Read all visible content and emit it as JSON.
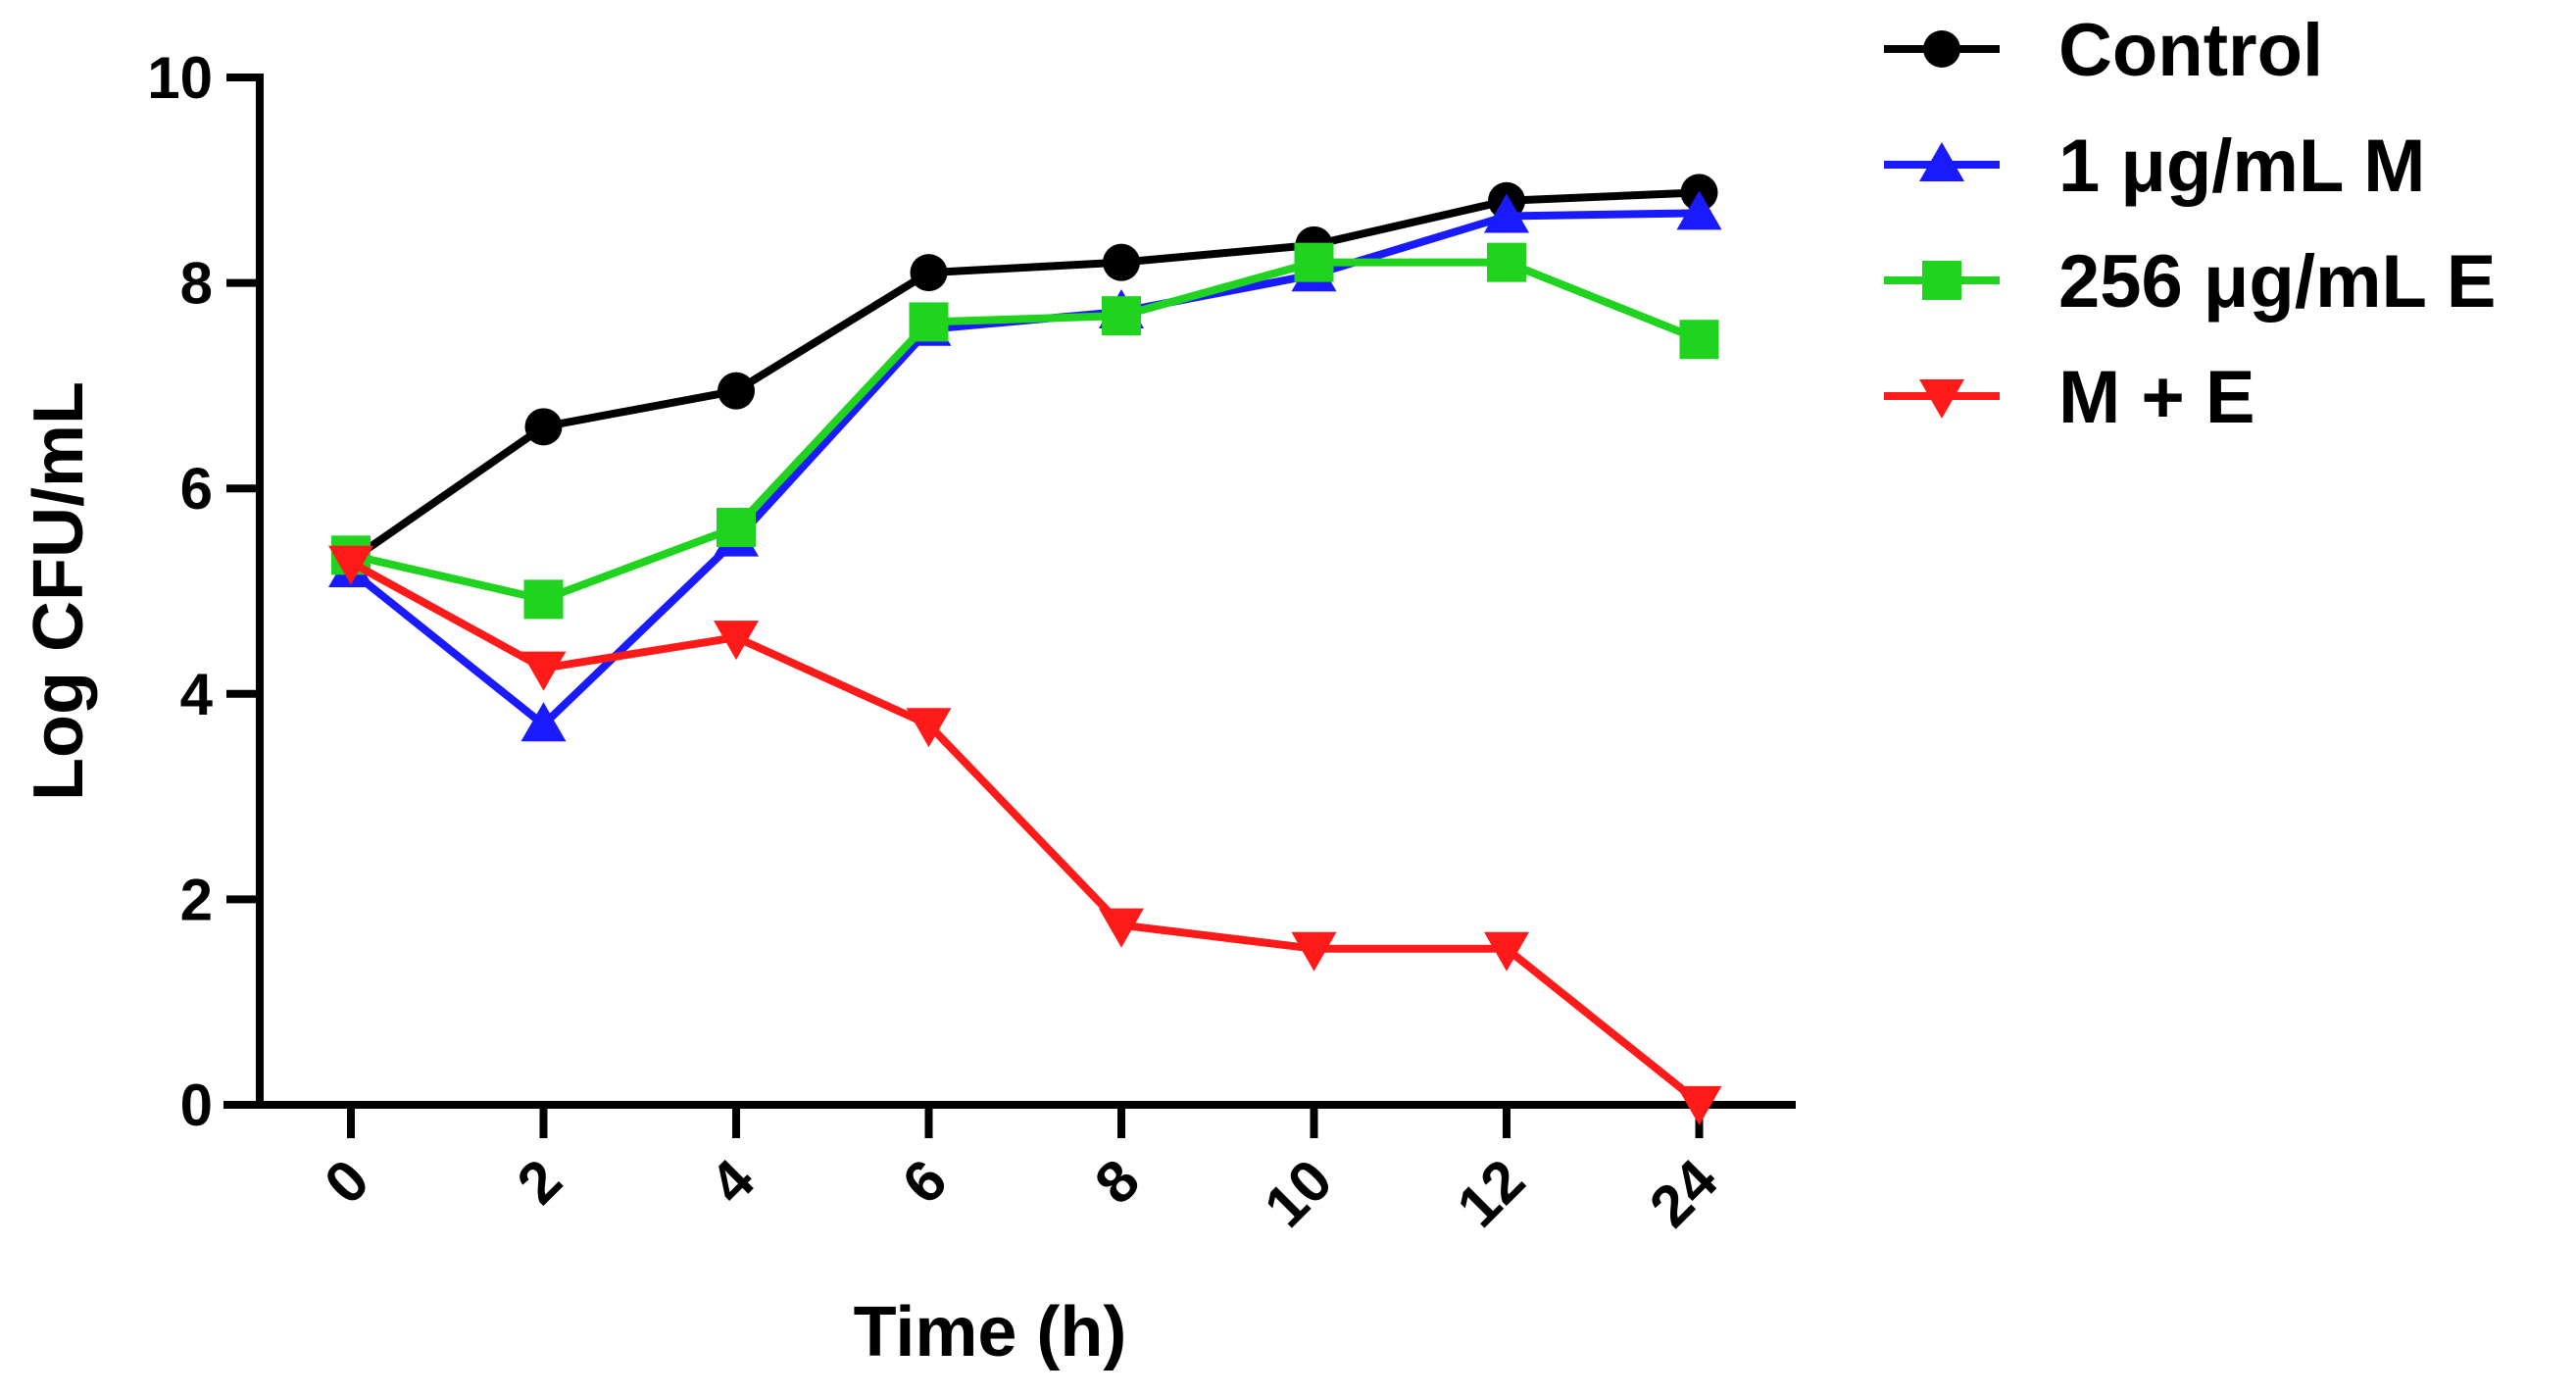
{
  "chart_data": {
    "type": "line",
    "title": "",
    "xlabel": "Time (h)",
    "ylabel": "Log CFU/mL",
    "categories": [
      "0",
      "2",
      "4",
      "6",
      "8",
      "10",
      "12",
      "24"
    ],
    "ylim": [
      0,
      10
    ],
    "yticks": [
      "0",
      "2",
      "4",
      "6",
      "8",
      "10"
    ],
    "grid": false,
    "legend_position": "top-right",
    "series": [
      {
        "name": "Control",
        "color": "#000000",
        "marker": "circle",
        "values": [
          5.3,
          6.6,
          6.95,
          8.1,
          8.2,
          8.37,
          8.8,
          8.88
        ]
      },
      {
        "name": "1 μg/mL M",
        "color": "#1a1aff",
        "marker": "triangle-up",
        "values": [
          5.2,
          3.7,
          5.5,
          7.55,
          7.72,
          8.08,
          8.65,
          8.68
        ]
      },
      {
        "name": "256 μg/mL E",
        "color": "#1fd31f",
        "marker": "square",
        "values": [
          5.35,
          4.92,
          5.62,
          7.62,
          7.68,
          8.2,
          8.2,
          7.45
        ]
      },
      {
        "name": "M + E",
        "color": "#ff1a1a",
        "marker": "triangle-down",
        "values": [
          5.28,
          4.25,
          4.55,
          3.7,
          1.75,
          1.52,
          1.52,
          0.02
        ]
      }
    ]
  }
}
